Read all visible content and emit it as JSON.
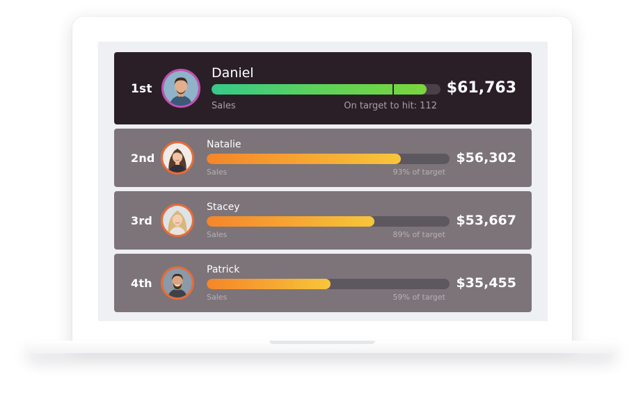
{
  "leaderboard": {
    "entries": [
      {
        "rank": "1st",
        "name": "Daniel",
        "progress": 0.94,
        "target_marker": 0.79,
        "label_left": "Sales",
        "label_right": "On target to hit: 112",
        "amount": "$61,763",
        "avatar": "man-portrait"
      },
      {
        "rank": "2nd",
        "name": "Natalie",
        "progress": 0.8,
        "label_left": "Sales",
        "label_right": "93% of target",
        "amount": "$56,302",
        "avatar": "woman-portrait"
      },
      {
        "rank": "3rd",
        "name": "Stacey",
        "progress": 0.69,
        "label_left": "Sales",
        "label_right": "89% of target",
        "amount": "$53,667",
        "avatar": "woman-portrait"
      },
      {
        "rank": "4th",
        "name": "Patrick",
        "progress": 0.51,
        "label_left": "Sales",
        "label_right": "59% of target",
        "amount": "$35,455",
        "avatar": "man-portrait"
      }
    ]
  },
  "colors": {
    "first_row_bg": "#2a1f27",
    "other_row_bg": "#7c7479",
    "first_bar": "#5dd25a",
    "other_bar": "#f6a532",
    "first_avatar_ring": "#c54fb6",
    "other_avatar_ring": "#ea6a38"
  }
}
